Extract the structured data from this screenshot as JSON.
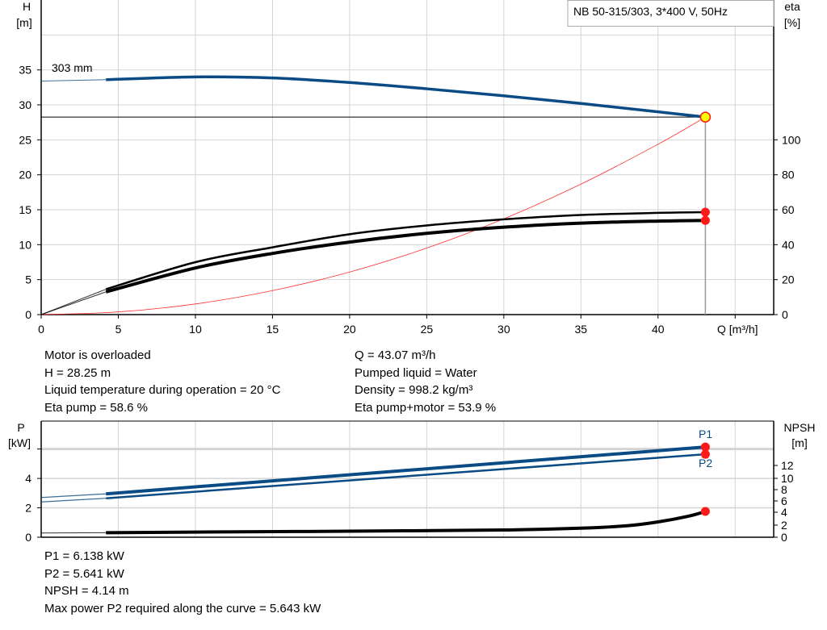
{
  "chart_data": [
    {
      "type": "line",
      "legend_box": "NB 50-315/303, 3*400 V, 50Hz",
      "xlabel": "Q [m³/h]",
      "ylabel_left": [
        "H",
        "[m]"
      ],
      "ylabel_right": [
        "eta",
        "[%]"
      ],
      "xlim": [
        0,
        47.5
      ],
      "ylim_left": [
        0,
        45
      ],
      "ylim_right": [
        0,
        180
      ],
      "grid": true,
      "x_ticks": [
        "0",
        "5",
        "10",
        "15",
        "20",
        "25",
        "30",
        "35",
        "40"
      ],
      "y_ticks_left": [
        "0",
        "5",
        "10",
        "15",
        "20",
        "25",
        "30",
        "35"
      ],
      "y_ticks_right": [
        "0",
        "20",
        "40",
        "60",
        "80",
        "100"
      ],
      "curve_label": "303 mm",
      "series": [
        {
          "id": "H",
          "axis": "left",
          "color": "#0a4a85",
          "x": [
            0,
            4.2,
            10,
            15,
            20,
            25,
            30,
            35,
            40,
            43.07
          ],
          "y": [
            33.4,
            33.6,
            34.0,
            33.85,
            33.2,
            32.3,
            31.3,
            30.2,
            29.0,
            28.25
          ]
        },
        {
          "id": "eta_pump",
          "axis": "right",
          "color": "#000000",
          "x": [
            0,
            4.2,
            10,
            15,
            20,
            25,
            30,
            35,
            40,
            43.07
          ],
          "y": [
            0,
            14.5,
            30,
            38.5,
            46,
            51,
            54.5,
            57,
            58.2,
            58.6
          ]
        },
        {
          "id": "eta_pump_motor",
          "axis": "right",
          "color": "#000000",
          "x": [
            0,
            4.2,
            10,
            15,
            20,
            25,
            30,
            35,
            40,
            43.07
          ],
          "y": [
            0,
            13,
            26.7,
            35,
            41.5,
            46.5,
            50,
            52.3,
            53.5,
            53.9
          ]
        },
        {
          "id": "system_curve",
          "axis": "left",
          "color": "#ff3030",
          "x": [
            0,
            5,
            10,
            15,
            20,
            25,
            30,
            35,
            40,
            43.07
          ],
          "y": [
            0,
            0.38,
            1.52,
            3.43,
            6.09,
            9.52,
            13.7,
            18.66,
            24.37,
            28.25
          ]
        }
      ],
      "operating_point": {
        "Q": 43.07,
        "H": 28.25,
        "eta_pump": 58.6,
        "eta_pump_motor": 53.9
      }
    },
    {
      "type": "line",
      "xlabel": "",
      "ylabel_left": [
        "P",
        "[kW]"
      ],
      "ylabel_right": [
        "NPSH",
        "[m]"
      ],
      "xlim": [
        0,
        47.5
      ],
      "ylim_left": [
        0,
        7.9
      ],
      "grid": true,
      "y_ticks_left": [
        "0",
        "2",
        "4"
      ],
      "y_ticks_right": [
        "0",
        "2",
        "4",
        "6",
        "8",
        "10",
        "12"
      ],
      "series": [
        {
          "id": "P1",
          "name": "P1",
          "axis": "left",
          "color": "#0a4a85",
          "x": [
            0,
            4.2,
            43.07
          ],
          "y": [
            2.7,
            2.95,
            6.138
          ]
        },
        {
          "id": "P2",
          "name": "P2",
          "axis": "left",
          "color": "#0a4a85",
          "x": [
            0,
            4.2,
            43.07
          ],
          "y": [
            2.4,
            2.65,
            5.641
          ]
        },
        {
          "id": "NPSH",
          "axis": "right",
          "color": "#000000",
          "x": [
            0,
            4.2,
            10,
            20,
            30,
            35,
            38,
            40,
            42,
            43.07
          ],
          "y": [
            0.7,
            0.75,
            0.85,
            1.0,
            1.2,
            1.5,
            1.9,
            2.5,
            3.4,
            4.14
          ]
        }
      ]
    }
  ],
  "info_top_left": [
    "Motor is overloaded",
    "H = 28.25 m",
    "Liquid temperature during operation = 20 °C",
    "Eta pump = 58.6 %"
  ],
  "info_top_right": [
    "Q = 43.07 m³/h",
    "Pumped liquid = Water",
    "Density = 998.2 kg/m³",
    "Eta pump+motor = 53.9 %"
  ],
  "info_bottom": [
    "P1 = 6.138 kW",
    "P2 = 5.641 kW",
    "NPSH = 4.14 m",
    "Max power P2 required along the curve = 5.643 kW"
  ],
  "colors": {
    "head": "#0a4a85",
    "point": "#ff1a1a",
    "duty_point_fill": "#ffff00",
    "grid": "#d4d4d4"
  }
}
